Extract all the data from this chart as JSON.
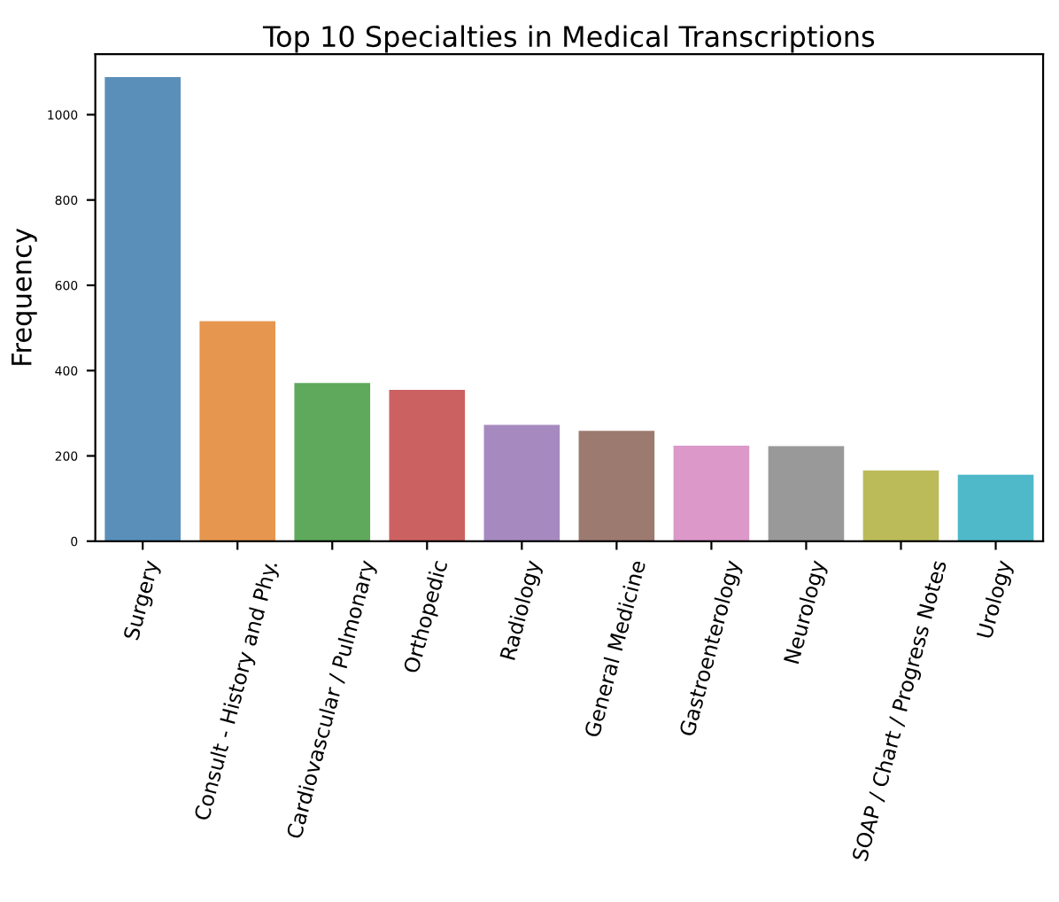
{
  "chart_data": {
    "type": "bar",
    "title": "Top 10 Specialties in Medical Transcriptions",
    "ylabel": "Frequency",
    "categories": [
      "Surgery",
      "Consult - History and Phy.",
      "Cardiovascular / Pulmonary",
      "Orthopedic",
      "Radiology",
      "General Medicine",
      "Gastroenterology",
      "Neurology",
      "SOAP / Chart / Progress Notes",
      "Urology"
    ],
    "values": [
      1088,
      516,
      371,
      355,
      273,
      259,
      224,
      223,
      166,
      156
    ],
    "colors": [
      "#5a8fba",
      "#e6964f",
      "#5fa95d",
      "#cc6162",
      "#a68abf",
      "#9c7a70",
      "#db98c9",
      "#999999",
      "#bcbb5a",
      "#4fb9c9"
    ],
    "ylim": [
      0,
      1142
    ],
    "yticks": [
      0,
      200,
      400,
      600,
      800,
      1000
    ],
    "grid": false
  }
}
